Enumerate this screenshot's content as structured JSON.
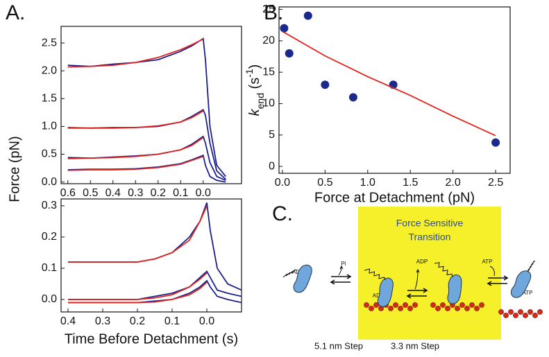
{
  "panel_labels": [
    "A.",
    "B.",
    "C."
  ],
  "chart_data": [
    {
      "type": "line",
      "ylabel": "Force (pN)",
      "xlim": [
        0.63,
        -0.17
      ],
      "ylim": [
        -0.03,
        2.8
      ],
      "xticks": [
        0.6,
        0.5,
        0.4,
        0.3,
        0.2,
        0.1,
        {
          "value": 0,
          "label": "0.0"
        }
      ],
      "yticks": [
        {
          "value": 0,
          "label": "0.0"
        },
        0.5,
        {
          "value": 1,
          "label": "1.0"
        },
        1.5,
        {
          "value": 2,
          "label": "2.0"
        },
        2.5
      ],
      "series": [
        {
          "color": "#1a1f8c",
          "x": [
            0.6,
            0.5,
            0.4,
            0.3,
            0.2,
            0.1,
            0.05,
            0.0,
            -0.01,
            -0.03,
            -0.06,
            -0.1
          ],
          "values": [
            2.1,
            2.08,
            2.12,
            2.15,
            2.2,
            2.35,
            2.45,
            2.58,
            2.2,
            1.0,
            0.3,
            0.1
          ]
        },
        {
          "color": "#1a1f8c",
          "x": [
            0.6,
            0.5,
            0.4,
            0.3,
            0.2,
            0.1,
            0.05,
            0.0,
            -0.01,
            -0.03,
            -0.06,
            -0.1
          ],
          "values": [
            0.98,
            0.97,
            0.98,
            0.98,
            1.0,
            1.08,
            1.18,
            1.3,
            1.2,
            0.7,
            0.2,
            0.05
          ]
        },
        {
          "color": "#1a1f8c",
          "x": [
            0.6,
            0.5,
            0.4,
            0.3,
            0.2,
            0.1,
            0.05,
            0.0,
            -0.01,
            -0.03,
            -0.06,
            -0.1
          ],
          "values": [
            0.44,
            0.43,
            0.45,
            0.47,
            0.5,
            0.58,
            0.68,
            0.82,
            0.7,
            0.35,
            0.1,
            0.03
          ]
        },
        {
          "color": "#1a1f8c",
          "x": [
            0.6,
            0.5,
            0.4,
            0.3,
            0.2,
            0.1,
            0.05,
            0.0,
            -0.01,
            -0.03,
            -0.06,
            -0.1
          ],
          "values": [
            0.22,
            0.23,
            0.23,
            0.24,
            0.27,
            0.33,
            0.4,
            0.48,
            0.3,
            0.1,
            0.03,
            0.0
          ]
        },
        {
          "color": "#e0231c",
          "x": [
            0.6,
            0.5,
            0.4,
            0.3,
            0.2,
            0.1,
            0.05,
            0.0
          ],
          "values": [
            2.07,
            2.08,
            2.1,
            2.15,
            2.24,
            2.38,
            2.47,
            2.57
          ]
        },
        {
          "color": "#e0231c",
          "x": [
            0.6,
            0.5,
            0.4,
            0.3,
            0.2,
            0.1,
            0.05,
            0.0
          ],
          "values": [
            0.97,
            0.97,
            0.97,
            0.98,
            1.01,
            1.08,
            1.16,
            1.28
          ]
        },
        {
          "color": "#e0231c",
          "x": [
            0.6,
            0.5,
            0.4,
            0.3,
            0.2,
            0.1,
            0.05,
            0.0
          ],
          "values": [
            0.42,
            0.43,
            0.44,
            0.46,
            0.5,
            0.58,
            0.66,
            0.8
          ]
        },
        {
          "color": "#e0231c",
          "x": [
            0.6,
            0.5,
            0.4,
            0.3,
            0.2,
            0.1,
            0.05,
            0.0
          ],
          "values": [
            0.21,
            0.22,
            0.22,
            0.23,
            0.26,
            0.32,
            0.39,
            0.46
          ]
        }
      ]
    },
    {
      "type": "line",
      "xlabel": "Time Before Detachment (s)",
      "xlim": [
        0.42,
        -0.1
      ],
      "ylim": [
        -0.04,
        0.322
      ],
      "xticks": [
        0.4,
        0.3,
        0.2,
        0.1,
        {
          "value": 0,
          "label": "0.0"
        }
      ],
      "yticks": [
        {
          "value": 0,
          "label": "0.0"
        },
        0.1,
        0.2,
        0.3
      ],
      "series": [
        {
          "color": "#1a1f8c",
          "x": [
            0.4,
            0.3,
            0.2,
            0.15,
            0.1,
            0.05,
            0.02,
            0.0,
            -0.01,
            -0.03,
            -0.06,
            -0.1
          ],
          "values": [
            0.12,
            0.12,
            0.12,
            0.13,
            0.15,
            0.2,
            0.25,
            0.31,
            0.22,
            0.1,
            0.05,
            0.03
          ]
        },
        {
          "color": "#1a1f8c",
          "x": [
            0.4,
            0.3,
            0.2,
            0.15,
            0.1,
            0.05,
            0.02,
            0.0,
            -0.01,
            -0.03,
            -0.06,
            -0.1
          ],
          "values": [
            0.0,
            0.0,
            0.0,
            0.01,
            0.02,
            0.04,
            0.07,
            0.09,
            0.07,
            0.03,
            0.02,
            0.01
          ]
        },
        {
          "color": "#1a1f8c",
          "x": [
            0.4,
            0.3,
            0.2,
            0.15,
            0.1,
            0.05,
            0.02,
            0.0,
            -0.01,
            -0.03,
            -0.06,
            -0.1
          ],
          "values": [
            -0.01,
            -0.01,
            -0.01,
            -0.005,
            0.0,
            0.02,
            0.04,
            0.06,
            0.04,
            0.01,
            0.0,
            -0.01
          ]
        },
        {
          "color": "#e0231c",
          "x": [
            0.4,
            0.3,
            0.2,
            0.15,
            0.1,
            0.05,
            0.02,
            0.0
          ],
          "values": [
            0.12,
            0.12,
            0.12,
            0.13,
            0.15,
            0.19,
            0.25,
            0.3
          ]
        },
        {
          "color": "#e0231c",
          "x": [
            0.4,
            0.3,
            0.2,
            0.15,
            0.1,
            0.05,
            0.02,
            0.0
          ],
          "values": [
            0.0,
            0.0,
            0.0,
            0.005,
            0.015,
            0.04,
            0.065,
            0.085
          ]
        },
        {
          "color": "#e0231c",
          "x": [
            0.4,
            0.3,
            0.2,
            0.15,
            0.1,
            0.05,
            0.02,
            0.0
          ],
          "values": [
            -0.01,
            -0.01,
            -0.01,
            -0.008,
            0.0,
            0.015,
            0.035,
            0.055
          ]
        }
      ]
    },
    {
      "type": "scatter",
      "xlabel": "Force at Detachment (pN)",
      "ylabel_parts": [
        "k",
        "end",
        " (s",
        "-1",
        ")"
      ],
      "xlim": [
        -0.04,
        2.67
      ],
      "ylim": [
        -1.1,
        25.4
      ],
      "xticks": [
        {
          "value": 0,
          "label": "0.0"
        },
        0.5,
        {
          "value": 1,
          "label": "1.0"
        },
        1.5,
        {
          "value": 2,
          "label": "2.0"
        },
        2.5
      ],
      "yticks": [
        0,
        5,
        10,
        15,
        20,
        25
      ],
      "series": [
        {
          "color": "#1a2a8c",
          "x": [
            0.02,
            0.08,
            0.3,
            0.5,
            0.83,
            1.3,
            2.5
          ],
          "values": [
            22,
            18,
            24,
            13,
            11,
            13,
            3.8
          ]
        },
        {
          "type": "line",
          "color": "#e0231c",
          "x": [
            0,
            0.5,
            1,
            1.5,
            2,
            2.5
          ],
          "values": [
            21.5,
            17.6,
            14.3,
            11.3,
            8.0,
            4.9
          ]
        }
      ]
    }
  ],
  "diagram": {
    "title_lines": [
      "Force Sensitive",
      "Transition"
    ],
    "labels": [
      "ADP/Pi",
      "Pi",
      "ADP",
      "ADP",
      "ATP",
      "ATP"
    ],
    "steps": [
      "5.1 nm Step",
      "3.3 nm Step"
    ]
  }
}
